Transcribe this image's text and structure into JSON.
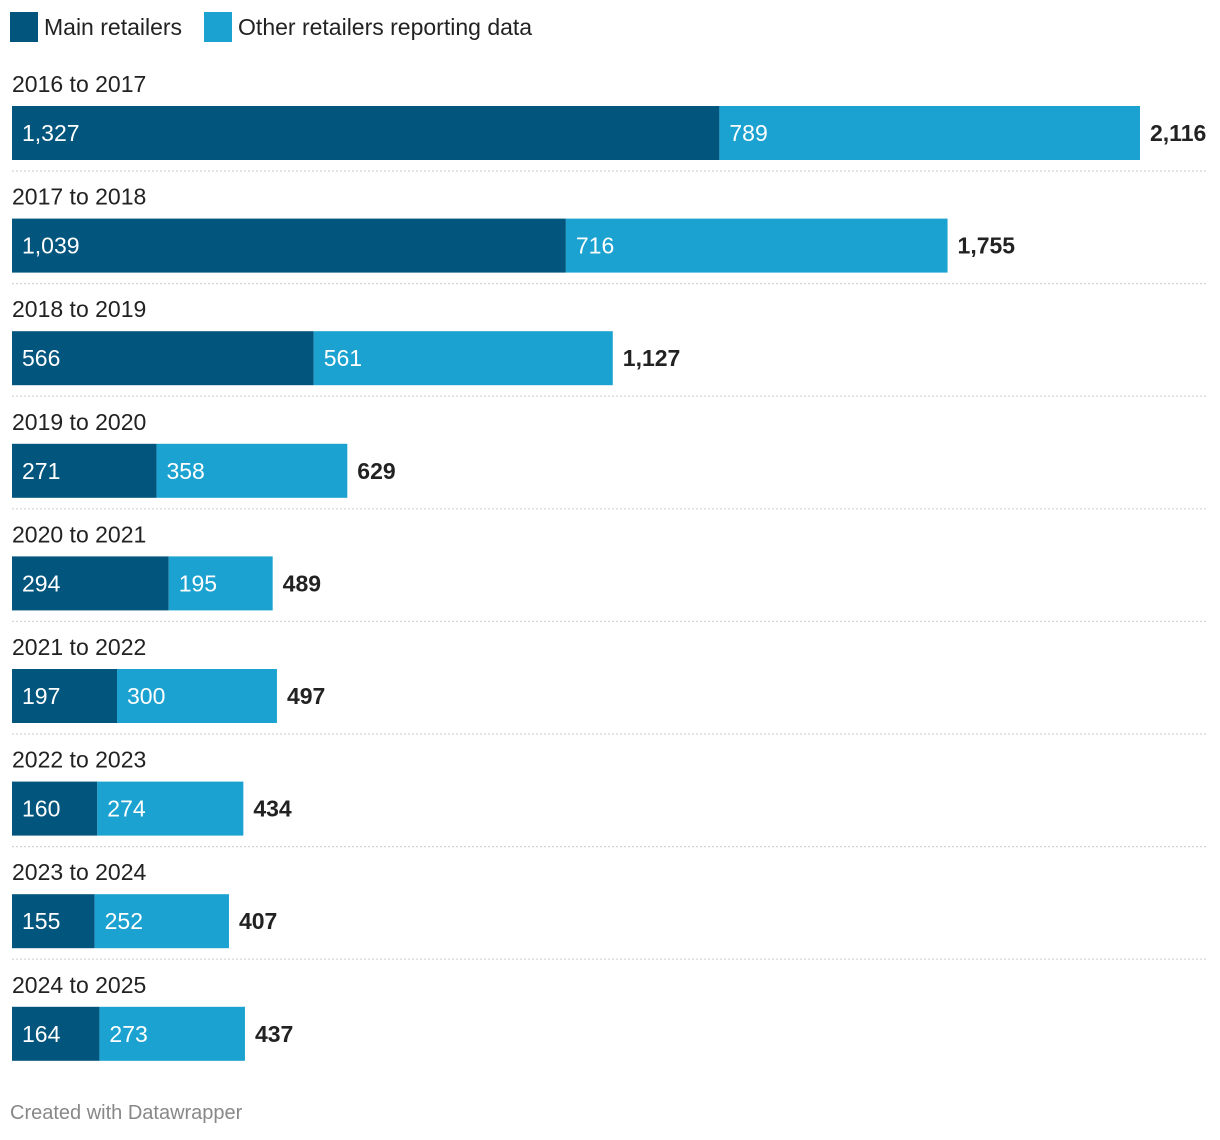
{
  "chart_data": {
    "type": "bar",
    "orientation": "horizontal",
    "stacked": true,
    "categories": [
      "2016 to 2017",
      "2017 to 2018",
      "2018 to 2019",
      "2019 to 2020",
      "2020 to 2021",
      "2021 to 2022",
      "2022 to 2023",
      "2023 to 2024",
      "2024 to 2025"
    ],
    "series": [
      {
        "name": "Main retailers",
        "color": "#02557d",
        "values": [
          1327,
          1039,
          566,
          271,
          294,
          197,
          160,
          155,
          164
        ],
        "labels": [
          "1,327",
          "1,039",
          "566",
          "271",
          "294",
          "197",
          "160",
          "155",
          "164"
        ]
      },
      {
        "name": "Other retailers reporting data",
        "color": "#1ba2d0",
        "values": [
          789,
          716,
          561,
          358,
          195,
          300,
          274,
          252,
          273
        ],
        "labels": [
          "789",
          "716",
          "561",
          "358",
          "195",
          "300",
          "274",
          "252",
          "273"
        ]
      }
    ],
    "totals": [
      2116,
      1755,
      1127,
      629,
      489,
      497,
      434,
      407,
      437
    ],
    "total_labels": [
      "2,116",
      "1,755",
      "1,127",
      "629",
      "489",
      "497",
      "434",
      "407",
      "437"
    ],
    "xlim": [
      0,
      2116
    ],
    "legend_position": "top-left",
    "title": "",
    "xlabel": "",
    "ylabel": ""
  },
  "legend": {
    "main_label": "Main retailers",
    "other_label": "Other retailers reporting data"
  },
  "footer": {
    "credit": "Created with Datawrapper"
  }
}
